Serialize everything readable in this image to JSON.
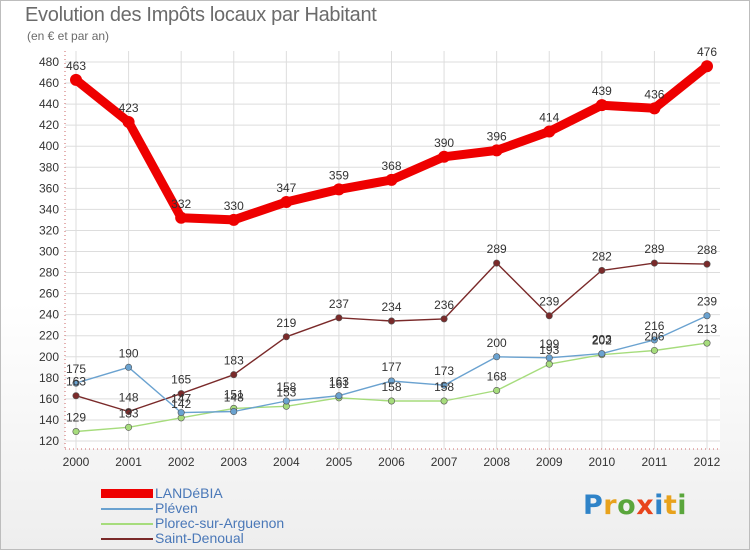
{
  "title": "Evolution des Impôts locaux par Habitant",
  "subtitle": "(en € et par an)",
  "brand": {
    "text": "Proxiti",
    "letter_colors": [
      "#2f83c8",
      "#e8a21c",
      "#5aa63c",
      "#e8441c",
      "#2f83c8",
      "#e8a21c",
      "#5aa63c"
    ]
  },
  "chart_data": {
    "type": "line",
    "title": "Evolution des Impôts locaux par Habitant",
    "subtitle": "(en € et par an)",
    "x": [
      "2000",
      "2001",
      "2002",
      "2003",
      "2004",
      "2005",
      "2006",
      "2007",
      "2008",
      "2009",
      "2010",
      "2011",
      "2012"
    ],
    "ylim": [
      120,
      480
    ],
    "yticks": [
      120,
      140,
      160,
      180,
      200,
      220,
      240,
      260,
      280,
      300,
      320,
      340,
      360,
      380,
      400,
      420,
      440,
      460,
      480
    ],
    "grid": true,
    "legend_position": "bottom-left",
    "series": [
      {
        "name": "LANDéBIA",
        "color": "#ee0000",
        "values": [
          463,
          423,
          332,
          330,
          347,
          359,
          368,
          390,
          396,
          414,
          439,
          436,
          476
        ]
      },
      {
        "name": "Pléven",
        "color": "#6aa2d0",
        "values": [
          175,
          190,
          147,
          148,
          158,
          163,
          177,
          173,
          200,
          199,
          203,
          216,
          239
        ]
      },
      {
        "name": "Plorec-sur-Arguenon",
        "color": "#a6dc7c",
        "values": [
          129,
          133,
          142,
          151,
          153,
          161,
          158,
          158,
          168,
          193,
          202,
          206,
          213
        ]
      },
      {
        "name": "Saint-Denoual",
        "color": "#7a2a2a",
        "values": [
          163,
          148,
          165,
          183,
          219,
          237,
          234,
          236,
          289,
          239,
          282,
          289,
          288
        ]
      }
    ]
  }
}
